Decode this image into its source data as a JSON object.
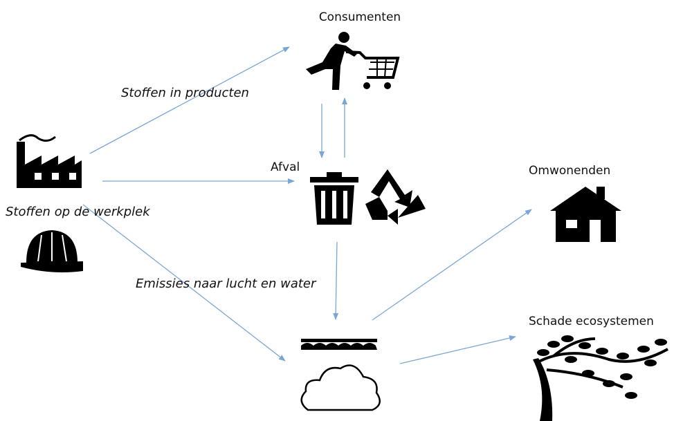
{
  "nodes": [
    {
      "label": "Consumenten"
    },
    {
      "label": "Afval"
    },
    {
      "label": "Omwonenden"
    },
    {
      "label": "Schade ecosystemen"
    }
  ],
  "edges": [
    {
      "label": "Stoffen in producten"
    },
    {
      "label": "Stoffen op de werkplek"
    },
    {
      "label": "Emissies naar lucht en water"
    }
  ]
}
